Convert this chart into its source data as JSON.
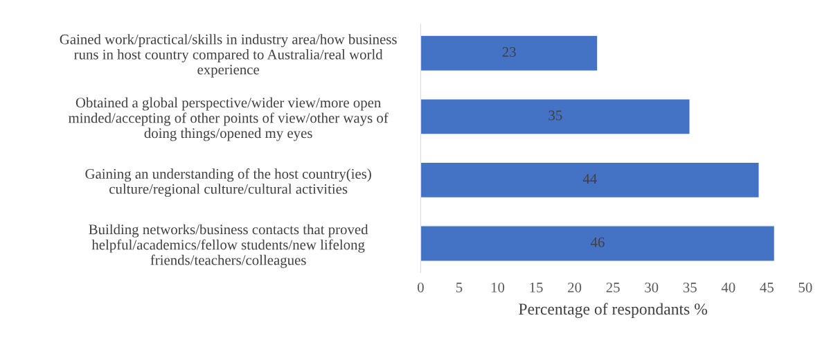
{
  "chart_data": {
    "type": "bar",
    "orientation": "horizontal",
    "categories": [
      "Gained work/practical/skills in industry area/how business\nruns in host country compared to Australia/real world\nexperience",
      "Obtained a global perspective/wider view/more open\nminded/accepting of other points of view/other ways of\ndoing things/opened my eyes",
      "Gaining an understanding of the host country(ies)\nculture/regional culture/cultural activities",
      "Building networks/business contacts that proved\nhelpful/academics/fellow students/new lifelong\nfriends/teachers/colleagues"
    ],
    "values": [
      23,
      35,
      44,
      46
    ],
    "color": "#4472c4",
    "data_labels": true,
    "xlabel": "Percentage of respondants %",
    "xlim": [
      0,
      50
    ],
    "xticks": [
      0,
      5,
      10,
      15,
      20,
      25,
      30,
      35,
      40,
      45,
      50
    ],
    "grid": false,
    "legend": false
  }
}
